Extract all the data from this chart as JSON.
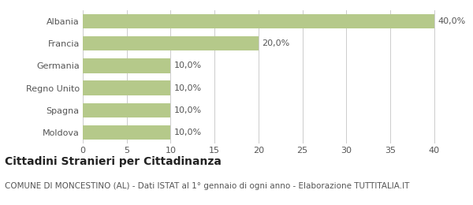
{
  "categories": [
    "Albania",
    "Francia",
    "Germania",
    "Regno Unito",
    "Spagna",
    "Moldova"
  ],
  "values": [
    40.0,
    20.0,
    10.0,
    10.0,
    10.0,
    10.0
  ],
  "labels": [
    "40,0%",
    "20,0%",
    "10,0%",
    "10,0%",
    "10,0%",
    "10,0%"
  ],
  "bar_color": "#b5c98a",
  "xlim": [
    0,
    42
  ],
  "xticks": [
    0,
    5,
    10,
    15,
    20,
    25,
    30,
    35,
    40
  ],
  "title": "Cittadini Stranieri per Cittadinanza",
  "subtitle": "COMUNE DI MONCESTINO (AL) - Dati ISTAT al 1° gennaio di ogni anno - Elaborazione TUTTITALIA.IT",
  "title_fontsize": 10,
  "subtitle_fontsize": 7.5,
  "label_fontsize": 8,
  "tick_fontsize": 8,
  "ytick_fontsize": 8,
  "background_color": "#ffffff",
  "grid_color": "#cccccc",
  "text_color": "#555555"
}
